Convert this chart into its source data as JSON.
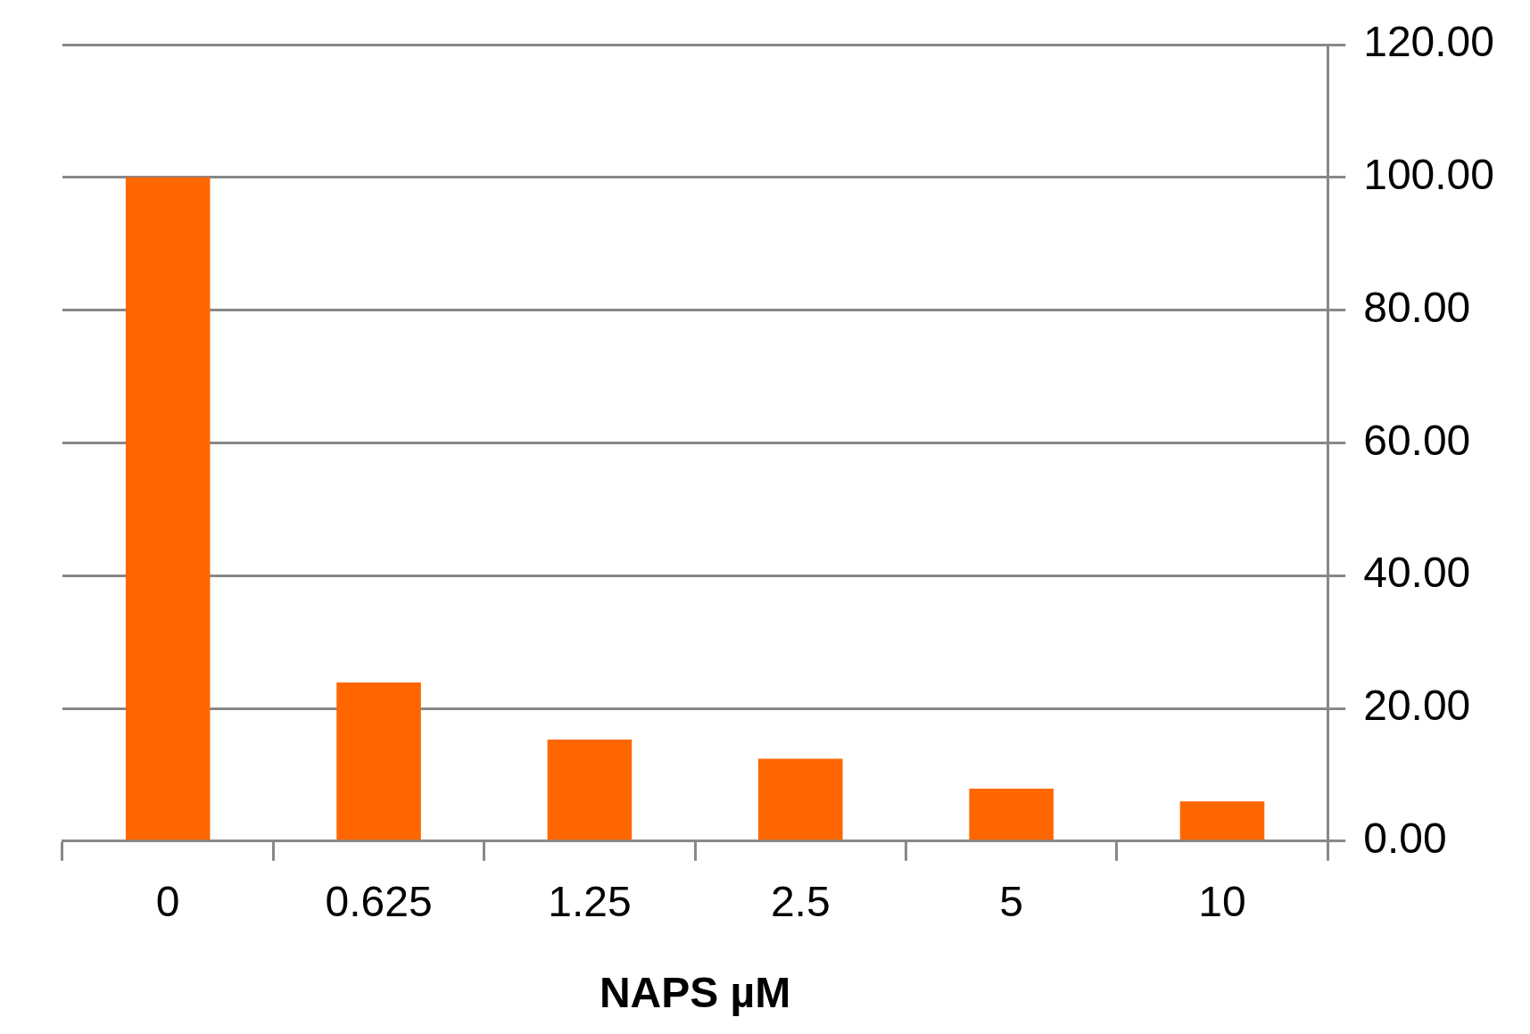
{
  "chart_data": {
    "type": "bar",
    "xlabel": "NAPS µM",
    "categories": [
      "0",
      "0.625",
      "1.25",
      "2.5",
      "5",
      "10"
    ],
    "values": [
      100,
      23.9,
      15.3,
      12.4,
      7.9,
      6.0
    ],
    "color": "#ff6600",
    "ylim": [
      0,
      120
    ],
    "yticks": [
      {
        "value": 0,
        "label": "0.00"
      },
      {
        "value": 20,
        "label": "20.00"
      },
      {
        "value": 40,
        "label": "40.00"
      },
      {
        "value": 60,
        "label": "60.00"
      },
      {
        "value": 80,
        "label": "80.00"
      },
      {
        "value": 100,
        "label": "100.00"
      },
      {
        "value": 120,
        "label": "120.00"
      }
    ],
    "grid": "y",
    "legend": false
  }
}
